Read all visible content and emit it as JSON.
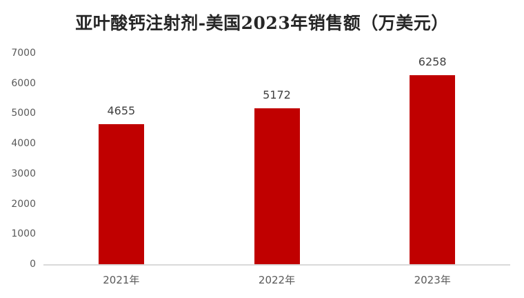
{
  "chart_data": {
    "type": "bar",
    "title": "亚叶酸钙注射剂-美国2023年销售额（万美元）",
    "categories": [
      "2021年",
      "2022年",
      "2023年"
    ],
    "values": [
      4655,
      5172,
      6258
    ],
    "data_labels": [
      "4655",
      "5172",
      "6258"
    ],
    "xlabel": "",
    "ylabel": "",
    "ylim": [
      0,
      7000
    ],
    "yticks": [
      0,
      1000,
      2000,
      3000,
      4000,
      5000,
      6000,
      7000
    ],
    "ytick_labels": [
      "0",
      "1000",
      "2000",
      "3000",
      "4000",
      "5000",
      "6000",
      "7000"
    ],
    "grid": false,
    "legend_position": "none"
  },
  "colors": {
    "bar": "#c00000",
    "title_text": "#262626",
    "value_label_text": "#404040",
    "axis_tick_text": "#595959",
    "axis_line": "#d9d9d9",
    "background": "#ffffff"
  }
}
